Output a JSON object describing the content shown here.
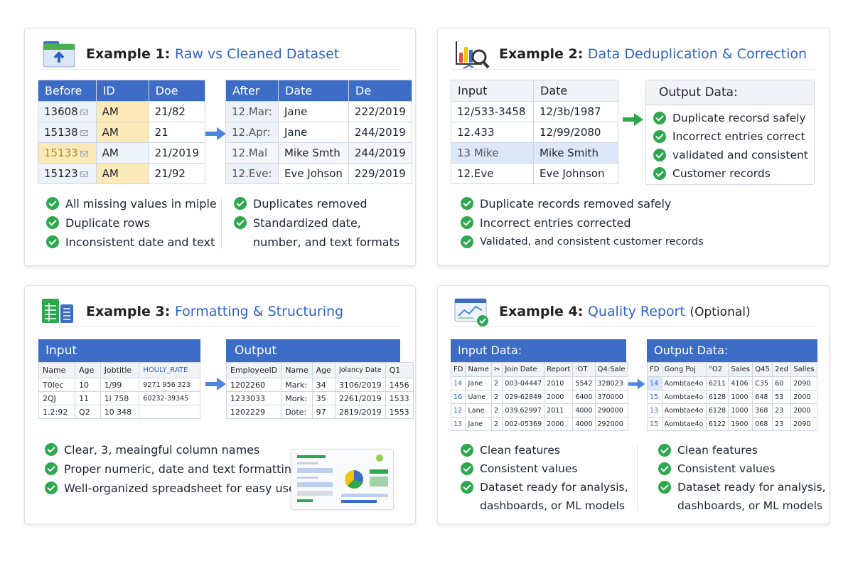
{
  "colors": {
    "accent": "#2f63c8",
    "header_blue": "#3d6cc7",
    "check_green": "#2ea84e",
    "highlight_yellow": "#fbe9b8"
  },
  "ex1": {
    "title_prefix": "Example 1:",
    "title_accent": "Raw vs Cleaned Dataset",
    "icon": "folder-upload-icon",
    "before": {
      "headers": [
        "Before",
        "ID",
        "Doe"
      ],
      "rows": [
        [
          "13608",
          "AM",
          "21/82"
        ],
        [
          "15138",
          "AM",
          "21"
        ],
        [
          "15133",
          "AM",
          "21/2019"
        ],
        [
          "15123",
          "AM",
          "21/92"
        ]
      ]
    },
    "after": {
      "headers": [
        "After",
        "Date",
        "De"
      ],
      "rows": [
        [
          "12.Mar:",
          "Jane",
          "222/2019"
        ],
        [
          "12.Apr:",
          "Jane",
          "244/2019"
        ],
        [
          "12.Mal",
          "Mike Smth",
          "244/2019"
        ],
        [
          "12.Eve:",
          "Eve Johson",
          "229/2019"
        ]
      ]
    },
    "left_points": [
      "All missing values in miple",
      "Duplicate rows",
      "Inconsistent date and text"
    ],
    "right_points": [
      "Duplicates removed",
      "Standardized date,",
      "number, and text formats"
    ]
  },
  "ex2": {
    "title_prefix": "Example 2:",
    "title_accent": "Data Deduplication & Correction",
    "icon": "chart-magnifier-icon",
    "input": {
      "headers": [
        "Input",
        "Date"
      ],
      "rows": [
        [
          "12/533-3458",
          "12/3b/1987"
        ],
        [
          "12.433",
          "12/99/2080"
        ],
        [
          "13 Mike",
          "Mike Smith"
        ],
        [
          "12.Eve",
          "Eve Johnson"
        ]
      ]
    },
    "output_title": "Output Data:",
    "output_items": [
      "Duplicate recorsd safely",
      "Incorrect entries correct",
      "validated and consistent",
      "Customer records"
    ],
    "points": [
      "Duplicate records removed safely",
      "Incorrect entries corrected",
      "Validated, and consistent customer records"
    ]
  },
  "ex3": {
    "title_prefix": "Example 3:",
    "title_accent": "Formatting & Structuring",
    "icon": "spreadsheet-icon",
    "input": {
      "title": "Input",
      "headers": [
        "Name",
        "Age",
        "Jobtitle",
        "HOULY_RATE"
      ],
      "rows": [
        [
          "T0lec",
          "10",
          "1/99",
          "9271 956 323"
        ],
        [
          "2QJ",
          "11",
          "1l 758",
          "60232-39345"
        ],
        [
          "1.2:92",
          "Q2",
          "10 348",
          ""
        ]
      ]
    },
    "output": {
      "title": "Output",
      "headers": [
        "EmployeeID",
        "Name",
        "Age",
        "Jolancy Date",
        "Q1"
      ],
      "rows": [
        [
          "1202260",
          "Mark:",
          "34",
          "3106/2019",
          "1456"
        ],
        [
          "1233033",
          "Mork:",
          "35",
          "2261/2019",
          "1533"
        ],
        [
          "1202229",
          "Dote:",
          "97",
          "2819/2019",
          "1553"
        ]
      ]
    },
    "points": [
      "Clear, 3, meaingful column names",
      "Proper numeric, date and text formatting",
      "Well-organized spreadsheet for easy use"
    ],
    "dashboard_icon": "dashboard-thumbnail-icon"
  },
  "ex4": {
    "title_prefix": "Example 4:",
    "title_accent": "Quality Report",
    "title_suffix": "(Optional)",
    "icon": "report-check-icon",
    "input": {
      "title": "Input Data:",
      "headers": [
        "FD",
        "Name",
        "",
        "Join",
        "Date",
        "Report",
        "·OT",
        "Q4:Sale"
      ],
      "rows": [
        [
          "14",
          "Jane",
          "2",
          "003-04447",
          "2010",
          "5542",
          "328023",
          ""
        ],
        [
          "16",
          "Uane",
          "2",
          "029-62849",
          "2000",
          "6400",
          "370000",
          ""
        ],
        [
          "12",
          "Lane",
          "2",
          "039.62997",
          "2011",
          "4000",
          "290000",
          ""
        ],
        [
          "13",
          "Jane",
          "2",
          "002-05369",
          "2000",
          "4000",
          "292000",
          ""
        ]
      ]
    },
    "output": {
      "title": "Output Data:",
      "headers": [
        "FD",
        "Gong",
        "Poj",
        "°O2",
        "Sales",
        "Q45",
        "2ed",
        "Salles"
      ],
      "rows": [
        [
          "14",
          "Aombtae4o",
          "6211",
          "4106",
          "C35",
          "60",
          "2090"
        ],
        [
          "15",
          "Aombtae4o",
          "6128",
          "1000",
          "648",
          "53",
          "2000"
        ],
        [
          "13",
          "Aombtae4o",
          "6128",
          "1000",
          "368",
          "23",
          "2000"
        ],
        [
          "15",
          "Aombtae4o",
          "6122",
          "1900",
          "068",
          "23",
          "2090"
        ]
      ]
    },
    "left_points": [
      "Clean features",
      "Consistent values",
      "Dataset ready for analysis,",
      "dashboards, or ML models"
    ],
    "right_points": [
      "Clean features",
      "Consistent values",
      "Dataset ready for analysis,",
      "dashboards, or ML models"
    ]
  }
}
